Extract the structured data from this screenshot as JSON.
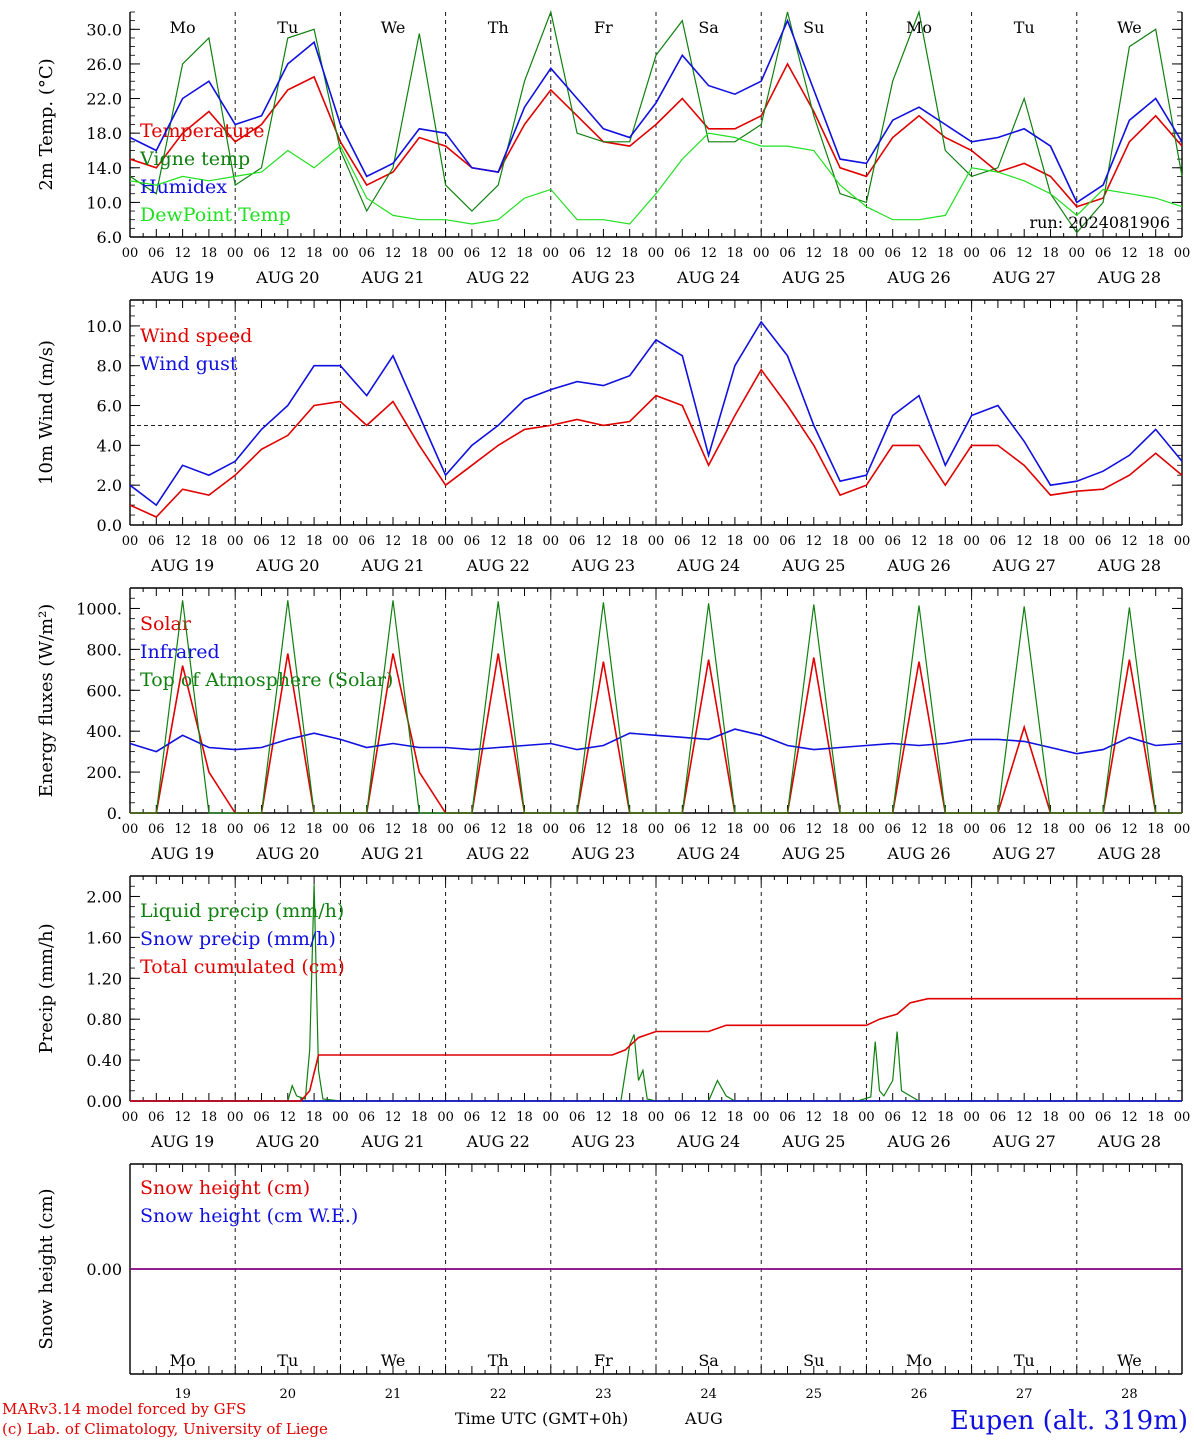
{
  "days": [
    "Mo",
    "Tu",
    "We",
    "Th",
    "Fr",
    "Sa",
    "Su",
    "Mo",
    "Tu",
    "We"
  ],
  "weekend_flags": [
    false,
    false,
    false,
    false,
    false,
    true,
    true,
    false,
    false,
    false
  ],
  "dates": [
    "AUG 19",
    "AUG 20",
    "AUG 21",
    "AUG 22",
    "AUG 23",
    "AUG 24",
    "AUG 25",
    "AUG 26",
    "AUG 27",
    "AUG 28"
  ],
  "day_numbers": [
    "19",
    "20",
    "21",
    "22",
    "23",
    "24",
    "25",
    "26",
    "27",
    "28"
  ],
  "hour_ticks": [
    "00",
    "06",
    "12",
    "18"
  ],
  "final_tick": "00",
  "month_label": "AUG",
  "time_axis_label": "Time UTC (GMT+0h)",
  "run_label": "run: 2024081906",
  "footer_model": "MARv3.14 model forced by GFS",
  "footer_lab": "(c) Lab. of Climatology, University of Liege",
  "location": "Eupen (alt. 319m)",
  "colors": {
    "red": "#e00000",
    "green": "#108010",
    "blue": "#1010e0",
    "lightgreen": "#20e020",
    "purple": "#800080"
  },
  "chart_data": [
    {
      "type": "line",
      "ylabel": "2m Temp. (°C)",
      "ylim": [
        6,
        32
      ],
      "yticks": [
        "6.0",
        "10.0",
        "14.0",
        "18.0",
        "22.0",
        "26.0",
        "30.0"
      ],
      "x_hours": [
        0,
        6,
        12,
        18,
        24,
        30,
        36,
        42,
        48,
        54,
        60,
        66,
        72,
        78,
        84,
        90,
        96,
        102,
        108,
        114,
        120,
        126,
        132,
        138,
        144,
        150,
        156,
        162,
        168,
        174,
        180,
        186,
        192,
        198,
        204,
        210,
        216,
        222,
        228,
        234,
        240
      ],
      "series": [
        {
          "name": "Temperature",
          "color": "red",
          "values": [
            15.0,
            14.0,
            18.0,
            20.5,
            17.0,
            19.0,
            23.0,
            24.5,
            17.0,
            12.0,
            13.5,
            17.5,
            16.5,
            14.0,
            13.5,
            19.0,
            23.0,
            20.0,
            17.0,
            16.5,
            19.0,
            22.0,
            18.5,
            18.5,
            20.0,
            26.0,
            20.5,
            14.0,
            13.0,
            17.5,
            20.0,
            17.5,
            16.0,
            13.5,
            14.5,
            13.0,
            9.5,
            10.5,
            17.0,
            20.0,
            16.5
          ]
        },
        {
          "name": "Vigne temp",
          "color": "green",
          "values": [
            13.0,
            11.0,
            26.0,
            29.0,
            12.0,
            14.0,
            29.0,
            30.0,
            16.0,
            9.0,
            14.0,
            29.5,
            12.0,
            9.0,
            12.0,
            24.0,
            32.0,
            18.0,
            17.0,
            17.0,
            27.0,
            31.0,
            17.0,
            17.0,
            19.0,
            33.0,
            20.0,
            11.0,
            10.0,
            24.0,
            33.0,
            16.0,
            13.0,
            14.0,
            22.0,
            11.0,
            6.5,
            10.0,
            28.0,
            30.0,
            13.0
          ]
        },
        {
          "name": "Humidex",
          "color": "blue",
          "values": [
            17.5,
            16.0,
            22.0,
            24.0,
            19.0,
            20.0,
            26.0,
            28.5,
            19.0,
            13.0,
            14.5,
            18.5,
            18.0,
            14.0,
            13.5,
            21.0,
            25.5,
            22.0,
            18.5,
            17.5,
            21.5,
            27.0,
            23.5,
            22.5,
            24.0,
            31.0,
            23.0,
            15.0,
            14.5,
            19.5,
            21.0,
            19.0,
            17.0,
            17.5,
            18.5,
            16.5,
            10.0,
            12.0,
            19.5,
            22.0,
            17.0
          ]
        },
        {
          "name": "DewPoint Temp",
          "color": "lightgreen",
          "values": [
            12.5,
            12.0,
            13.0,
            12.5,
            13.0,
            13.5,
            16.0,
            14.0,
            16.5,
            10.5,
            8.5,
            8.0,
            8.0,
            7.5,
            8.0,
            10.5,
            11.5,
            8.0,
            8.0,
            7.5,
            11.0,
            15.0,
            18.0,
            17.5,
            16.5,
            16.5,
            16.0,
            12.0,
            9.5,
            8.0,
            8.0,
            8.5,
            14.0,
            13.5,
            12.5,
            11.0,
            8.5,
            11.5,
            11.0,
            10.5,
            9.5
          ]
        }
      ]
    },
    {
      "type": "line",
      "ylabel": "10m Wind (m/s)",
      "ylim": [
        0,
        11.3
      ],
      "yticks": [
        "0.0",
        "2.0",
        "4.0",
        "6.0",
        "8.0",
        "10.0"
      ],
      "x_hours": [
        0,
        6,
        12,
        18,
        24,
        30,
        36,
        42,
        48,
        54,
        60,
        66,
        72,
        78,
        84,
        90,
        96,
        102,
        108,
        114,
        120,
        126,
        132,
        138,
        144,
        150,
        156,
        162,
        168,
        174,
        180,
        186,
        192,
        198,
        204,
        210,
        216,
        222,
        228,
        234,
        240
      ],
      "series": [
        {
          "name": "Wind speed",
          "color": "red",
          "values": [
            1.0,
            0.4,
            1.8,
            1.5,
            2.5,
            3.8,
            4.5,
            6.0,
            6.2,
            5.0,
            6.2,
            4.0,
            2.0,
            3.0,
            4.0,
            4.8,
            5.0,
            5.3,
            5.0,
            5.2,
            6.5,
            6.0,
            3.0,
            5.5,
            7.8,
            6.0,
            4.0,
            1.5,
            2.0,
            4.0,
            4.0,
            2.0,
            4.0,
            4.0,
            3.0,
            1.5,
            1.7,
            1.8,
            2.5,
            3.6,
            2.5
          ]
        },
        {
          "name": "Wind gust",
          "color": "blue",
          "values": [
            2.0,
            1.0,
            3.0,
            2.5,
            3.2,
            4.8,
            6.0,
            8.0,
            8.0,
            6.5,
            8.5,
            5.5,
            2.5,
            4.0,
            5.0,
            6.3,
            6.8,
            7.2,
            7.0,
            7.5,
            9.3,
            8.5,
            3.5,
            8.0,
            10.2,
            8.5,
            5.0,
            2.2,
            2.5,
            5.5,
            6.5,
            3.0,
            5.5,
            6.0,
            4.2,
            2.0,
            2.2,
            2.7,
            3.5,
            4.8,
            3.2
          ]
        }
      ]
    },
    {
      "type": "line",
      "ylabel": "Energy fluxes (W/m²)",
      "ylim": [
        0,
        1100
      ],
      "yticks": [
        "0.",
        "200.",
        "400.",
        "600.",
        "800.",
        "1000."
      ],
      "x_hours": [
        0,
        6,
        12,
        18,
        24,
        30,
        36,
        42,
        48,
        54,
        60,
        66,
        72,
        78,
        84,
        90,
        96,
        102,
        108,
        114,
        120,
        126,
        132,
        138,
        144,
        150,
        156,
        162,
        168,
        174,
        180,
        186,
        192,
        198,
        204,
        210,
        216,
        222,
        228,
        234,
        240
      ],
      "series": [
        {
          "name": "Solar",
          "color": "red",
          "values": [
            0,
            0,
            720,
            200,
            0,
            0,
            780,
            0,
            0,
            0,
            780,
            200,
            0,
            0,
            780,
            0,
            0,
            0,
            740,
            0,
            0,
            0,
            750,
            0,
            0,
            0,
            760,
            0,
            0,
            0,
            740,
            0,
            0,
            0,
            420,
            0,
            0,
            0,
            750,
            0,
            0
          ]
        },
        {
          "name": "Infrared",
          "color": "blue",
          "values": [
            340,
            300,
            380,
            320,
            310,
            320,
            360,
            390,
            360,
            320,
            340,
            320,
            320,
            310,
            320,
            330,
            340,
            310,
            330,
            390,
            380,
            370,
            360,
            410,
            380,
            330,
            310,
            320,
            330,
            340,
            330,
            340,
            360,
            360,
            350,
            320,
            290,
            310,
            370,
            330,
            340
          ]
        },
        {
          "name": "Top of Atmosphere (Solar)",
          "color": "green",
          "values": [
            0,
            0,
            1040,
            0,
            0,
            0,
            1040,
            0,
            0,
            0,
            1040,
            0,
            0,
            0,
            1035,
            0,
            0,
            0,
            1030,
            0,
            0,
            0,
            1025,
            0,
            0,
            0,
            1020,
            0,
            0,
            0,
            1015,
            0,
            0,
            0,
            1010,
            0,
            0,
            0,
            1005,
            0,
            0
          ]
        }
      ]
    },
    {
      "type": "line",
      "ylabel": "Precip (mm/h)",
      "ylim": [
        0,
        2.2
      ],
      "yticks": [
        "0.00",
        "0.40",
        "0.80",
        "1.20",
        "1.60",
        "2.00"
      ],
      "series": [
        {
          "name": "Liquid precip (mm/h)",
          "color": "green",
          "points": [
            [
              0,
              0
            ],
            [
              36,
              0
            ],
            [
              37,
              0.15
            ],
            [
              38,
              0.05
            ],
            [
              40,
              0.02
            ],
            [
              41,
              0.5
            ],
            [
              42,
              2.12
            ],
            [
              43,
              0.3
            ],
            [
              44,
              0.02
            ],
            [
              48,
              0
            ],
            [
              112,
              0
            ],
            [
              114,
              0.55
            ],
            [
              115,
              0.65
            ],
            [
              116,
              0.2
            ],
            [
              117,
              0.3
            ],
            [
              118,
              0.02
            ],
            [
              120,
              0
            ],
            [
              132,
              0
            ],
            [
              134,
              0.2
            ],
            [
              136,
              0.05
            ],
            [
              138,
              0
            ],
            [
              166,
              0
            ],
            [
              169,
              0.04
            ],
            [
              170,
              0.58
            ],
            [
              171,
              0.1
            ],
            [
              172,
              0.05
            ],
            [
              174,
              0.2
            ],
            [
              175,
              0.68
            ],
            [
              176,
              0.1
            ],
            [
              178,
              0.05
            ],
            [
              180,
              0
            ],
            [
              240,
              0
            ]
          ]
        },
        {
          "name": "Snow precip (mm/h)",
          "color": "blue",
          "points": [
            [
              0,
              0
            ],
            [
              240,
              0
            ]
          ]
        },
        {
          "name": "Total cumulated (cm)",
          "color": "red",
          "points": [
            [
              0,
              0
            ],
            [
              39,
              0
            ],
            [
              41,
              0.1
            ],
            [
              43,
              0.45
            ],
            [
              110,
              0.45
            ],
            [
              113,
              0.5
            ],
            [
              116,
              0.62
            ],
            [
              120,
              0.68
            ],
            [
              132,
              0.68
            ],
            [
              136,
              0.74
            ],
            [
              168,
              0.74
            ],
            [
              171,
              0.8
            ],
            [
              175,
              0.85
            ],
            [
              178,
              0.96
            ],
            [
              182,
              1.0
            ],
            [
              240,
              1.0
            ]
          ]
        }
      ]
    },
    {
      "type": "line",
      "ylabel": "Snow height (cm)",
      "ylim": [
        -1,
        1
      ],
      "yticks": [
        "0.00"
      ],
      "series": [
        {
          "name": "Snow height (cm)",
          "color": "red",
          "points": [
            [
              0,
              0
            ],
            [
              240,
              0
            ]
          ]
        },
        {
          "name": "Snow height (cm W.E.)",
          "color": "blue",
          "points": [
            [
              0,
              0
            ],
            [
              240,
              0
            ]
          ]
        }
      ]
    }
  ]
}
